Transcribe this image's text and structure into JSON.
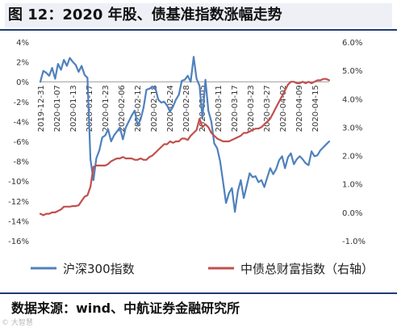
{
  "title": "图 12：2020 年股、债基准指数涨幅走势",
  "source": "数据来源：wind、中航证券金融研究所",
  "watermark": "© 大智慧",
  "chart_data": {
    "type": "line",
    "left_axis": {
      "ticks": [
        "4%",
        "2%",
        "0%",
        "-2%",
        "-4%",
        "-6%",
        "-8%",
        "-10%",
        "-12%",
        "-14%",
        "-16%"
      ],
      "ylim": [
        -16,
        4
      ]
    },
    "right_axis": {
      "ticks": [
        "6.0%",
        "5.0%",
        "4.0%",
        "3.0%",
        "2.0%",
        "1.0%",
        "0.0%",
        "-1.0%"
      ],
      "ylim": [
        -1,
        6
      ]
    },
    "x_ticks": [
      "2019-12-31",
      "2020-01-07",
      "2020-01-13",
      "2020-01-17",
      "2020-01-23",
      "2020-02-06",
      "2020-02-12",
      "2020-02-18",
      "2020-02-24",
      "2020-02-28",
      "2020-03-05",
      "2020-03-11",
      "2020-03-17",
      "2020-03-23",
      "2020-03-27",
      "2020-04-02",
      "2020-04-09",
      "2020-04-15"
    ],
    "grid": false,
    "legend_position": "bottom",
    "series": [
      {
        "name": "沪深300指数",
        "axis": "left",
        "color": "#4f81bd",
        "values": [
          0.0,
          1.1,
          0.9,
          0.6,
          1.4,
          0.3,
          1.8,
          1.2,
          2.2,
          1.6,
          2.4,
          2.0,
          1.7,
          1.0,
          1.6,
          0.7,
          0.4,
          -7.8,
          -9.9,
          -7.7,
          -6.9,
          -5.6,
          -5.4,
          -4.8,
          -6.0,
          -5.4,
          -5.0,
          -4.6,
          -5.8,
          -4.6,
          -4.0,
          -3.4,
          -2.9,
          -4.4,
          -3.8,
          -2.6,
          -0.8,
          -0.7,
          -0.5,
          -0.6,
          -1.8,
          -2.1,
          -2.0,
          -2.4,
          -3.0,
          -2.5,
          -1.8,
          -1.3,
          0.1,
          0.2,
          0.6,
          0.0,
          2.5,
          0.3,
          -0.4,
          -3.7,
          0.2,
          -2.9,
          -4.0,
          -6.2,
          -6.7,
          -8.0,
          -10.1,
          -12.2,
          -11.2,
          -10.7,
          -13.1,
          -11.0,
          -9.9,
          -11.7,
          -10.5,
          -9.2,
          -9.6,
          -9.5,
          -10.1,
          -9.9,
          -10.6,
          -9.6,
          -8.7,
          -9.3,
          -8.8,
          -7.9,
          -7.5,
          -8.7,
          -7.6,
          -7.2,
          -8.3,
          -7.8,
          -7.5,
          -7.8,
          -8.2,
          -8.4,
          -7.0,
          -7.5,
          -7.4,
          -6.9,
          -6.6,
          -6.3,
          -6.0
        ]
      },
      {
        "name": "中债总财富指数（右轴）",
        "axis": "right",
        "color": "#c0504d",
        "values": [
          -0.05,
          -0.1,
          -0.05,
          -0.05,
          0.0,
          0.0,
          0.05,
          0.1,
          0.2,
          0.2,
          0.2,
          0.22,
          0.22,
          0.25,
          0.4,
          0.55,
          0.6,
          0.9,
          1.6,
          1.65,
          1.65,
          1.65,
          1.65,
          1.7,
          1.8,
          1.85,
          1.9,
          1.9,
          1.95,
          1.9,
          1.9,
          1.9,
          1.85,
          1.85,
          1.9,
          1.85,
          1.85,
          1.95,
          2.0,
          2.1,
          2.2,
          2.3,
          2.4,
          2.4,
          2.5,
          2.45,
          2.5,
          2.5,
          2.6,
          2.6,
          2.55,
          2.7,
          2.8,
          2.9,
          3.3,
          3.0,
          3.1,
          3.0,
          2.8,
          2.7,
          2.6,
          2.55,
          2.5,
          2.5,
          2.5,
          2.55,
          2.6,
          2.65,
          2.7,
          2.8,
          2.8,
          2.85,
          2.9,
          2.95,
          2.95,
          3.0,
          3.1,
          3.2,
          3.3,
          3.5,
          3.7,
          3.9,
          4.1,
          4.3,
          4.5,
          4.6,
          4.6,
          4.55,
          4.55,
          4.6,
          4.55,
          4.6,
          4.55,
          4.6,
          4.65,
          4.65,
          4.7,
          4.7,
          4.65
        ]
      }
    ]
  }
}
